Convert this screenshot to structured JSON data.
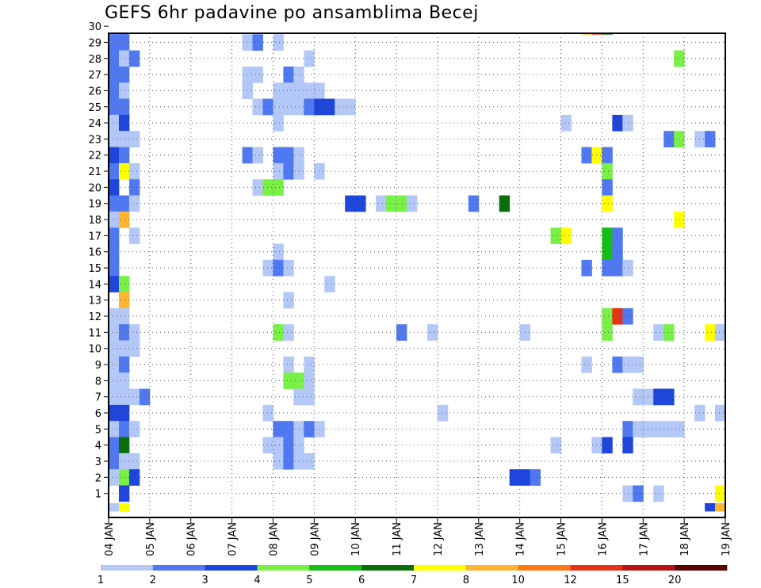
{
  "title": "GEFS 6hr padavine po ansamblima Becej",
  "chart_data": {
    "type": "heatmap",
    "title": "GEFS 6hr padavine po ansamblima Becej",
    "xlabel": "",
    "ylabel": "",
    "x_tick_labels": [
      "04 JAN",
      "05 JAN",
      "06 JAN",
      "07 JAN",
      "08 JAN",
      "09 JAN",
      "10 JAN",
      "11 JAN",
      "12 JAN",
      "13 JAN",
      "14 JAN",
      "15 JAN",
      "16 JAN",
      "17 JAN",
      "18 JAN",
      "19 JAN"
    ],
    "y_tick_labels": [
      "1",
      "2",
      "3",
      "4",
      "5",
      "6",
      "7",
      "8",
      "9",
      "10",
      "11",
      "12",
      "13",
      "14",
      "15",
      "16",
      "17",
      "18",
      "19",
      "20",
      "21",
      "22",
      "23",
      "24",
      "25",
      "26",
      "27",
      "28",
      "29",
      "30"
    ],
    "x_range_steps": [
      0,
      60
    ],
    "y_range_members": [
      0,
      30
    ],
    "grid": "dotted",
    "colorbar": {
      "labels": [
        "1",
        "2",
        "3",
        "4",
        "5",
        "6",
        "7",
        "8",
        "10",
        "12",
        "15",
        "20"
      ],
      "colors": [
        "#b4c8f7",
        "#5078f0",
        "#1e46dc",
        "#78f046",
        "#14be14",
        "#0a6e0a",
        "#ffff00",
        "#ffb432",
        "#ff7814",
        "#e63214",
        "#b41414",
        "#5a0000"
      ]
    },
    "color_levels": {
      "L": "#b4c8f7",
      "M": "#5078f0",
      "D": "#1e46dc",
      "g": "#78f046",
      "G": "#14be14",
      "K": "#0a6e0a",
      "Y": "#ffff00",
      "O": "#ffb432",
      "R": "#e63214"
    },
    "member_rows": [
      {
        "member": 30,
        "cells": [
          [
            0,
            "L"
          ],
          [
            1,
            "M"
          ],
          [
            46,
            "O"
          ],
          [
            47,
            "R"
          ],
          [
            48,
            "K"
          ]
        ]
      },
      {
        "member": 29,
        "cells": [
          [
            0,
            "M"
          ],
          [
            1,
            "M"
          ],
          [
            13,
            "L"
          ],
          [
            14,
            "M"
          ],
          [
            16,
            "L"
          ]
        ]
      },
      {
        "member": 28,
        "cells": [
          [
            0,
            "M"
          ],
          [
            1,
            "L"
          ],
          [
            2,
            "M"
          ],
          [
            19,
            "L"
          ],
          [
            55,
            "g"
          ]
        ]
      },
      {
        "member": 27,
        "cells": [
          [
            0,
            "M"
          ],
          [
            1,
            "M"
          ],
          [
            13,
            "L"
          ],
          [
            14,
            "L"
          ],
          [
            17,
            "M"
          ],
          [
            18,
            "L"
          ]
        ]
      },
      {
        "member": 26,
        "cells": [
          [
            0,
            "M"
          ],
          [
            1,
            "L"
          ],
          [
            13,
            "L"
          ],
          [
            16,
            "L"
          ],
          [
            17,
            "L"
          ],
          [
            18,
            "L"
          ],
          [
            19,
            "L"
          ],
          [
            20,
            "L"
          ]
        ]
      },
      {
        "member": 25,
        "cells": [
          [
            0,
            "M"
          ],
          [
            1,
            "M"
          ],
          [
            14,
            "L"
          ],
          [
            15,
            "M"
          ],
          [
            16,
            "L"
          ],
          [
            17,
            "L"
          ],
          [
            18,
            "L"
          ],
          [
            19,
            "M"
          ],
          [
            20,
            "D"
          ],
          [
            21,
            "D"
          ],
          [
            22,
            "L"
          ],
          [
            23,
            "L"
          ]
        ]
      },
      {
        "member": 24,
        "cells": [
          [
            0,
            "L"
          ],
          [
            1,
            "D"
          ],
          [
            16,
            "L"
          ],
          [
            44,
            "L"
          ],
          [
            49,
            "D"
          ],
          [
            50,
            "L"
          ]
        ]
      },
      {
        "member": 23,
        "cells": [
          [
            0,
            "L"
          ],
          [
            1,
            "L"
          ],
          [
            2,
            "L"
          ],
          [
            54,
            "M"
          ],
          [
            55,
            "g"
          ],
          [
            57,
            "L"
          ],
          [
            58,
            "M"
          ]
        ]
      },
      {
        "member": 22,
        "cells": [
          [
            0,
            "D"
          ],
          [
            1,
            "M"
          ],
          [
            13,
            "M"
          ],
          [
            14,
            "L"
          ],
          [
            16,
            "M"
          ],
          [
            17,
            "M"
          ],
          [
            18,
            "L"
          ],
          [
            46,
            "M"
          ],
          [
            47,
            "Y"
          ],
          [
            48,
            "M"
          ]
        ]
      },
      {
        "member": 21,
        "cells": [
          [
            0,
            "M"
          ],
          [
            1,
            "Y"
          ],
          [
            2,
            "L"
          ],
          [
            16,
            "L"
          ],
          [
            17,
            "M"
          ],
          [
            18,
            "L"
          ],
          [
            20,
            "L"
          ],
          [
            48,
            "g"
          ]
        ]
      },
      {
        "member": 20,
        "cells": [
          [
            0,
            "D"
          ],
          [
            2,
            "M"
          ],
          [
            14,
            "L"
          ],
          [
            15,
            "g"
          ],
          [
            16,
            "g"
          ],
          [
            48,
            "M"
          ]
        ]
      },
      {
        "member": 19,
        "cells": [
          [
            0,
            "M"
          ],
          [
            1,
            "M"
          ],
          [
            2,
            "L"
          ],
          [
            23,
            "D"
          ],
          [
            24,
            "D"
          ],
          [
            26,
            "L"
          ],
          [
            27,
            "g"
          ],
          [
            28,
            "g"
          ],
          [
            29,
            "L"
          ],
          [
            35,
            "M"
          ],
          [
            38,
            "K"
          ],
          [
            48,
            "Y"
          ]
        ]
      },
      {
        "member": 18,
        "cells": [
          [
            0,
            "L"
          ],
          [
            1,
            "O"
          ],
          [
            55,
            "Y"
          ]
        ]
      },
      {
        "member": 17,
        "cells": [
          [
            0,
            "M"
          ],
          [
            2,
            "L"
          ],
          [
            43,
            "g"
          ],
          [
            44,
            "Y"
          ],
          [
            48,
            "G"
          ],
          [
            49,
            "M"
          ]
        ]
      },
      {
        "member": 16,
        "cells": [
          [
            0,
            "M"
          ],
          [
            16,
            "L"
          ],
          [
            48,
            "G"
          ],
          [
            49,
            "M"
          ]
        ]
      },
      {
        "member": 15,
        "cells": [
          [
            0,
            "M"
          ],
          [
            15,
            "L"
          ],
          [
            16,
            "M"
          ],
          [
            17,
            "L"
          ],
          [
            46,
            "M"
          ],
          [
            48,
            "M"
          ],
          [
            49,
            "M"
          ],
          [
            50,
            "L"
          ]
        ]
      },
      {
        "member": 14,
        "cells": [
          [
            0,
            "D"
          ],
          [
            1,
            "g"
          ],
          [
            21,
            "L"
          ]
        ]
      },
      {
        "member": 13,
        "cells": [
          [
            1,
            "O"
          ],
          [
            17,
            "L"
          ]
        ]
      },
      {
        "member": 12,
        "cells": [
          [
            0,
            "L"
          ],
          [
            1,
            "L"
          ],
          [
            48,
            "g"
          ],
          [
            49,
            "R"
          ],
          [
            50,
            "M"
          ]
        ]
      },
      {
        "member": 11,
        "cells": [
          [
            0,
            "L"
          ],
          [
            1,
            "M"
          ],
          [
            2,
            "L"
          ],
          [
            16,
            "g"
          ],
          [
            17,
            "L"
          ],
          [
            28,
            "M"
          ],
          [
            31,
            "L"
          ],
          [
            40,
            "L"
          ],
          [
            48,
            "g"
          ],
          [
            53,
            "L"
          ],
          [
            54,
            "g"
          ],
          [
            58,
            "Y"
          ],
          [
            59,
            "L"
          ]
        ]
      },
      {
        "member": 10,
        "cells": [
          [
            0,
            "L"
          ],
          [
            1,
            "L"
          ],
          [
            2,
            "L"
          ]
        ]
      },
      {
        "member": 9,
        "cells": [
          [
            0,
            "L"
          ],
          [
            1,
            "M"
          ],
          [
            17,
            "L"
          ],
          [
            19,
            "L"
          ],
          [
            46,
            "L"
          ],
          [
            49,
            "M"
          ],
          [
            50,
            "L"
          ],
          [
            51,
            "L"
          ]
        ]
      },
      {
        "member": 8,
        "cells": [
          [
            0,
            "L"
          ],
          [
            1,
            "L"
          ],
          [
            17,
            "g"
          ],
          [
            18,
            "g"
          ],
          [
            19,
            "L"
          ]
        ]
      },
      {
        "member": 7,
        "cells": [
          [
            0,
            "L"
          ],
          [
            1,
            "L"
          ],
          [
            2,
            "L"
          ],
          [
            3,
            "M"
          ],
          [
            18,
            "L"
          ],
          [
            19,
            "L"
          ],
          [
            51,
            "L"
          ],
          [
            52,
            "L"
          ],
          [
            53,
            "D"
          ],
          [
            54,
            "D"
          ]
        ]
      },
      {
        "member": 6,
        "cells": [
          [
            0,
            "D"
          ],
          [
            1,
            "D"
          ],
          [
            15,
            "L"
          ],
          [
            32,
            "L"
          ],
          [
            57,
            "L"
          ],
          [
            59,
            "L"
          ]
        ]
      },
      {
        "member": 5,
        "cells": [
          [
            0,
            "L"
          ],
          [
            1,
            "M"
          ],
          [
            2,
            "L"
          ],
          [
            16,
            "M"
          ],
          [
            17,
            "M"
          ],
          [
            18,
            "L"
          ],
          [
            19,
            "M"
          ],
          [
            20,
            "L"
          ],
          [
            50,
            "M"
          ],
          [
            51,
            "L"
          ],
          [
            52,
            "L"
          ],
          [
            53,
            "L"
          ],
          [
            54,
            "L"
          ],
          [
            55,
            "L"
          ]
        ]
      },
      {
        "member": 4,
        "cells": [
          [
            0,
            "M"
          ],
          [
            1,
            "K"
          ],
          [
            15,
            "L"
          ],
          [
            16,
            "L"
          ],
          [
            17,
            "M"
          ],
          [
            18,
            "L"
          ],
          [
            43,
            "L"
          ],
          [
            47,
            "L"
          ],
          [
            48,
            "D"
          ],
          [
            50,
            "D"
          ]
        ]
      },
      {
        "member": 3,
        "cells": [
          [
            0,
            "M"
          ],
          [
            1,
            "L"
          ],
          [
            2,
            "L"
          ],
          [
            16,
            "L"
          ],
          [
            17,
            "M"
          ],
          [
            18,
            "L"
          ],
          [
            19,
            "L"
          ]
        ]
      },
      {
        "member": 2,
        "cells": [
          [
            0,
            "L"
          ],
          [
            1,
            "g"
          ],
          [
            2,
            "D"
          ],
          [
            39,
            "D"
          ],
          [
            40,
            "D"
          ],
          [
            41,
            "M"
          ]
        ]
      },
      {
        "member": 1,
        "cells": [
          [
            1,
            "D"
          ],
          [
            50,
            "L"
          ],
          [
            51,
            "M"
          ],
          [
            53,
            "L"
          ],
          [
            59,
            "Y"
          ]
        ]
      },
      {
        "member": 0,
        "cells": [
          [
            0,
            "L"
          ],
          [
            1,
            "Y"
          ],
          [
            58,
            "D"
          ],
          [
            59,
            "O"
          ]
        ]
      }
    ]
  }
}
